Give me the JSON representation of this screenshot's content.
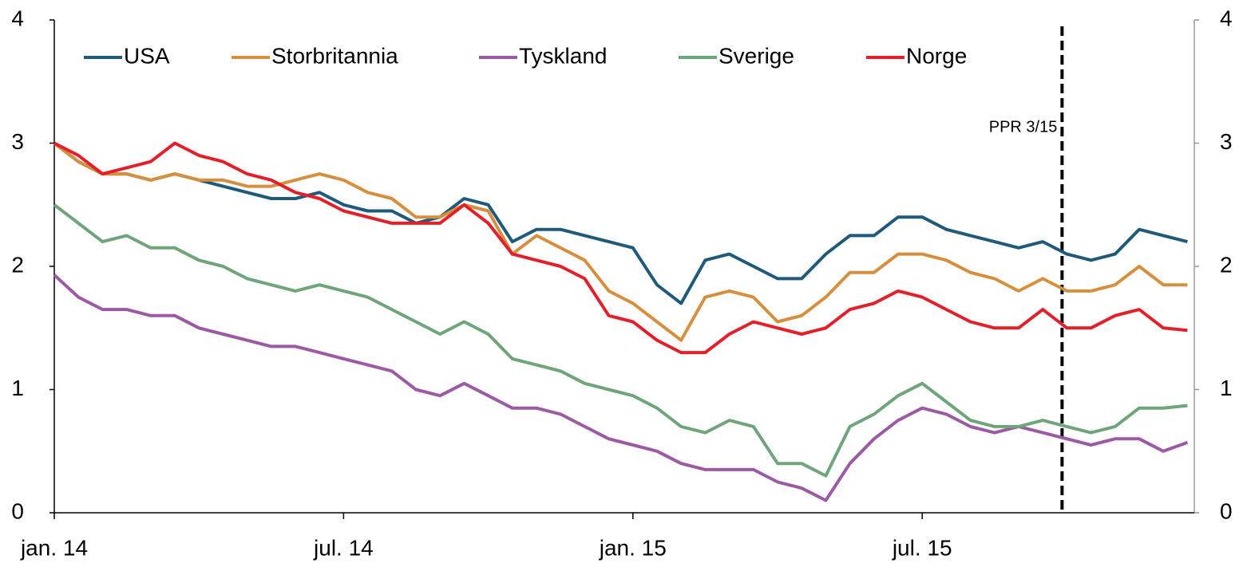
{
  "chart_data": {
    "type": "line",
    "categories": [
      "jan. 14",
      null,
      null,
      null,
      null,
      null,
      null,
      null,
      null,
      null,
      null,
      null,
      "jul. 14",
      null,
      null,
      null,
      null,
      null,
      null,
      null,
      null,
      null,
      null,
      null,
      "jan. 15",
      null,
      null,
      null,
      null,
      null,
      null,
      null,
      null,
      null,
      null,
      null,
      "jul. 15",
      null,
      null,
      null,
      null,
      null,
      null,
      null,
      null,
      null,
      null,
      null
    ],
    "series": [
      {
        "name": "USA",
        "color": "#1f5a7a",
        "values": [
          3.0,
          2.85,
          2.75,
          2.75,
          2.7,
          2.75,
          2.7,
          2.65,
          2.6,
          2.55,
          2.55,
          2.6,
          2.5,
          2.45,
          2.45,
          2.35,
          2.4,
          2.55,
          2.5,
          2.2,
          2.3,
          2.3,
          2.25,
          2.2,
          2.15,
          1.85,
          1.7,
          2.05,
          2.1,
          2.0,
          1.9,
          1.9,
          2.1,
          2.25,
          2.25,
          2.4,
          2.4,
          2.3,
          2.25,
          2.2,
          2.15,
          2.2,
          2.1,
          2.05,
          2.1,
          2.3,
          2.25,
          2.2
        ]
      },
      {
        "name": "Storbritannia",
        "color": "#d68f3c",
        "values": [
          3.0,
          2.85,
          2.75,
          2.75,
          2.7,
          2.75,
          2.7,
          2.7,
          2.65,
          2.65,
          2.7,
          2.75,
          2.7,
          2.6,
          2.55,
          2.4,
          2.4,
          2.5,
          2.45,
          2.1,
          2.25,
          2.15,
          2.05,
          1.8,
          1.7,
          1.55,
          1.4,
          1.75,
          1.8,
          1.75,
          1.55,
          1.6,
          1.75,
          1.95,
          1.95,
          2.1,
          2.1,
          2.05,
          1.95,
          1.9,
          1.8,
          1.9,
          1.8,
          1.8,
          1.85,
          2.0,
          1.85,
          1.85
        ]
      },
      {
        "name": "Tyskland",
        "color": "#9b5aa3",
        "values": [
          1.93,
          1.75,
          1.65,
          1.65,
          1.6,
          1.6,
          1.5,
          1.45,
          1.4,
          1.35,
          1.35,
          1.3,
          1.25,
          1.2,
          1.15,
          1.0,
          0.95,
          1.05,
          0.95,
          0.85,
          0.85,
          0.8,
          0.7,
          0.6,
          0.55,
          0.5,
          0.4,
          0.35,
          0.35,
          0.35,
          0.25,
          0.2,
          0.1,
          0.4,
          0.6,
          0.75,
          0.85,
          0.8,
          0.7,
          0.65,
          0.7,
          0.65,
          0.6,
          0.55,
          0.6,
          0.6,
          0.5,
          0.57
        ]
      },
      {
        "name": "Sverige",
        "color": "#6fa57a",
        "values": [
          2.5,
          2.35,
          2.2,
          2.25,
          2.15,
          2.15,
          2.05,
          2.0,
          1.9,
          1.85,
          1.8,
          1.85,
          1.8,
          1.75,
          1.65,
          1.55,
          1.45,
          1.55,
          1.45,
          1.25,
          1.2,
          1.15,
          1.05,
          1.0,
          0.95,
          0.85,
          0.7,
          0.65,
          0.75,
          0.7,
          0.4,
          0.4,
          0.3,
          0.7,
          0.8,
          0.95,
          1.05,
          0.9,
          0.75,
          0.7,
          0.7,
          0.75,
          0.7,
          0.65,
          0.7,
          0.85,
          0.85,
          0.87
        ]
      },
      {
        "name": "Norge",
        "color": "#e3202a",
        "values": [
          3.0,
          2.9,
          2.75,
          2.8,
          2.85,
          3.0,
          2.9,
          2.85,
          2.75,
          2.7,
          2.6,
          2.55,
          2.45,
          2.4,
          2.35,
          2.35,
          2.35,
          2.5,
          2.35,
          2.1,
          2.05,
          2.0,
          1.9,
          1.6,
          1.55,
          1.4,
          1.3,
          1.3,
          1.45,
          1.55,
          1.5,
          1.45,
          1.5,
          1.65,
          1.7,
          1.8,
          1.75,
          1.65,
          1.55,
          1.5,
          1.5,
          1.65,
          1.5,
          1.5,
          1.6,
          1.65,
          1.5,
          1.48
        ]
      }
    ],
    "ylim": [
      0,
      4
    ],
    "yticks": [
      0,
      1,
      2,
      3,
      4
    ],
    "y2lim": [
      0,
      4
    ],
    "y2ticks": [
      0,
      1,
      2,
      3,
      4
    ],
    "legend": "top-left",
    "annotations": [
      {
        "text": "PPR 3/15",
        "x": 41.8
      }
    ]
  }
}
